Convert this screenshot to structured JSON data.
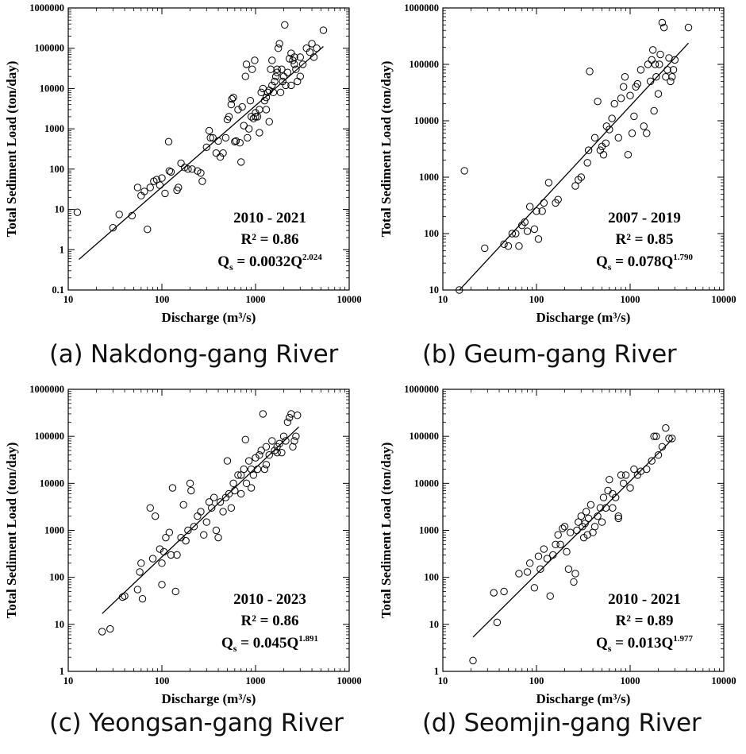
{
  "chart_data": [
    {
      "type": "scatter",
      "caption": "(a) Nakdong-gang River",
      "xlabel": "Discharge (m³/s)",
      "ylabel": "Total Sediment Load (ton/day)",
      "xscale": "log",
      "yscale": "log",
      "xlim": [
        10,
        10000
      ],
      "ylim": [
        0.1,
        1000000
      ],
      "xticks": [
        "10",
        "100",
        "1000",
        "10000"
      ],
      "yticks": [
        "0.1",
        "1",
        "10",
        "100",
        "1000",
        "10000",
        "100000",
        "1000000"
      ],
      "period": "2010 - 2021",
      "r2": "R² = 0.86",
      "equation": {
        "lhs": "Q",
        "lhs_sub": "s",
        "coef": " = 0.0032Q",
        "exp": "2.024"
      },
      "fit": {
        "a": 0.0032,
        "b": 2.024,
        "x_range": [
          13,
          5300
        ]
      },
      "points": [
        [
          12.5,
          8.5
        ],
        [
          30,
          3.5
        ],
        [
          35,
          7.5
        ],
        [
          48,
          7
        ],
        [
          55,
          35
        ],
        [
          60,
          22
        ],
        [
          65,
          28
        ],
        [
          70,
          3.2
        ],
        [
          75,
          35
        ],
        [
          82,
          50
        ],
        [
          88,
          55
        ],
        [
          95,
          40
        ],
        [
          100,
          60
        ],
        [
          108,
          25
        ],
        [
          118,
          480
        ],
        [
          120,
          90
        ],
        [
          125,
          85
        ],
        [
          145,
          30
        ],
        [
          150,
          35
        ],
        [
          160,
          140
        ],
        [
          175,
          110
        ],
        [
          190,
          100
        ],
        [
          210,
          100
        ],
        [
          240,
          90
        ],
        [
          260,
          80
        ],
        [
          270,
          50
        ],
        [
          300,
          350
        ],
        [
          320,
          900
        ],
        [
          330,
          600
        ],
        [
          350,
          600
        ],
        [
          380,
          250
        ],
        [
          400,
          500
        ],
        [
          420,
          200
        ],
        [
          450,
          250
        ],
        [
          480,
          600
        ],
        [
          500,
          1700
        ],
        [
          520,
          2000
        ],
        [
          550,
          4000
        ],
        [
          560,
          5500
        ],
        [
          580,
          6000
        ],
        [
          600,
          480
        ],
        [
          620,
          500
        ],
        [
          650,
          3000
        ],
        [
          680,
          450
        ],
        [
          700,
          150
        ],
        [
          720,
          3500
        ],
        [
          750,
          1200
        ],
        [
          780,
          20000
        ],
        [
          800,
          40000
        ],
        [
          820,
          600
        ],
        [
          850,
          1000
        ],
        [
          880,
          5000
        ],
        [
          900,
          2000
        ],
        [
          920,
          30000
        ],
        [
          950,
          1800
        ],
        [
          980,
          50000
        ],
        [
          1000,
          2500
        ],
        [
          1050,
          2000
        ],
        [
          1100,
          3000
        ],
        [
          1150,
          8000
        ],
        [
          1200,
          10000
        ],
        [
          1250,
          5000
        ],
        [
          1300,
          6000
        ],
        [
          1350,
          8000
        ],
        [
          1400,
          1500
        ],
        [
          1450,
          30000
        ],
        [
          1500,
          50000
        ],
        [
          1550,
          8000
        ],
        [
          1600,
          15000
        ],
        [
          1650,
          20000
        ],
        [
          1700,
          25000
        ],
        [
          1750,
          100000
        ],
        [
          1800,
          130000
        ],
        [
          1850,
          8000
        ],
        [
          1900,
          30000
        ],
        [
          1950,
          15000
        ],
        [
          2000,
          20000
        ],
        [
          2050,
          380000
        ],
        [
          2100,
          12000
        ],
        [
          2200,
          25000
        ],
        [
          2300,
          55000
        ],
        [
          2400,
          75000
        ],
        [
          2500,
          50000
        ],
        [
          2600,
          60000
        ],
        [
          2700,
          30000
        ],
        [
          2800,
          15000
        ],
        [
          3000,
          20000
        ],
        [
          3200,
          40000
        ],
        [
          3500,
          100000
        ],
        [
          3800,
          80000
        ],
        [
          4000,
          130000
        ],
        [
          4200,
          60000
        ],
        [
          4500,
          100000
        ],
        [
          5300,
          280000
        ],
        [
          1400,
          9000
        ],
        [
          1300,
          3000
        ],
        [
          1100,
          800
        ],
        [
          1000,
          2000
        ],
        [
          1500,
          12000
        ],
        [
          2600,
          40000
        ],
        [
          2400,
          12000
        ],
        [
          3000,
          60000
        ],
        [
          1700,
          30000
        ]
      ]
    },
    {
      "type": "scatter",
      "caption": "(b) Geum-gang River",
      "xlabel": "Discharge (m³/s)",
      "ylabel": "Total Sediment Load (ton/day)",
      "xscale": "log",
      "yscale": "log",
      "xlim": [
        10,
        10000
      ],
      "ylim": [
        10,
        1000000
      ],
      "xticks": [
        "10",
        "100",
        "1000",
        "10000"
      ],
      "yticks": [
        "10",
        "100",
        "1000",
        "10000",
        "100000",
        "1000000"
      ],
      "period": "2007 - 2019",
      "r2": "R² = 0.85",
      "equation": {
        "lhs": "Q",
        "lhs_sub": "s",
        "coef": " = 0.078Q",
        "exp": "1.790"
      },
      "fit": {
        "a": 0.078,
        "b": 1.79,
        "x_range": [
          15,
          4200
        ]
      },
      "points": [
        [
          15,
          10
        ],
        [
          17,
          1300
        ],
        [
          28,
          55
        ],
        [
          45,
          65
        ],
        [
          50,
          60
        ],
        [
          55,
          100
        ],
        [
          60,
          100
        ],
        [
          65,
          60
        ],
        [
          70,
          140
        ],
        [
          75,
          160
        ],
        [
          80,
          110
        ],
        [
          85,
          300
        ],
        [
          95,
          120
        ],
        [
          100,
          250
        ],
        [
          105,
          80
        ],
        [
          115,
          250
        ],
        [
          120,
          350
        ],
        [
          135,
          800
        ],
        [
          160,
          350
        ],
        [
          170,
          400
        ],
        [
          260,
          700
        ],
        [
          280,
          900
        ],
        [
          300,
          1000
        ],
        [
          350,
          1800
        ],
        [
          360,
          3000
        ],
        [
          370,
          75000
        ],
        [
          420,
          5000
        ],
        [
          450,
          22000
        ],
        [
          480,
          3000
        ],
        [
          500,
          3500
        ],
        [
          520,
          2500
        ],
        [
          550,
          4000
        ],
        [
          560,
          8000
        ],
        [
          600,
          7000
        ],
        [
          640,
          11000
        ],
        [
          680,
          20000
        ],
        [
          750,
          5000
        ],
        [
          800,
          25000
        ],
        [
          850,
          40000
        ],
        [
          880,
          60000
        ],
        [
          950,
          2500
        ],
        [
          1000,
          28000
        ],
        [
          1050,
          6000
        ],
        [
          1100,
          12000
        ],
        [
          1150,
          40000
        ],
        [
          1200,
          45000
        ],
        [
          1300,
          80000
        ],
        [
          1400,
          8000
        ],
        [
          1500,
          6000
        ],
        [
          1550,
          100000
        ],
        [
          1650,
          50000
        ],
        [
          1700,
          120000
        ],
        [
          1750,
          180000
        ],
        [
          1800,
          15000
        ],
        [
          1850,
          100000
        ],
        [
          1900,
          60000
        ],
        [
          2000,
          30000
        ],
        [
          2050,
          100000
        ],
        [
          2100,
          150000
        ],
        [
          2200,
          550000
        ],
        [
          2300,
          450000
        ],
        [
          2400,
          60000
        ],
        [
          2500,
          80000
        ],
        [
          2600,
          130000
        ],
        [
          2700,
          50000
        ],
        [
          2800,
          60000
        ],
        [
          2900,
          80000
        ],
        [
          3000,
          120000
        ],
        [
          4200,
          450000
        ]
      ]
    },
    {
      "type": "scatter",
      "caption": "(c) Yeongsan-gang River",
      "xlabel": "Discharge (m³/s)",
      "ylabel": "Total Sediment Load (ton/day)",
      "xscale": "log",
      "yscale": "log",
      "xlim": [
        10,
        10000
      ],
      "ylim": [
        1,
        1000000
      ],
      "xticks": [
        "10",
        "100",
        "1000",
        "10000"
      ],
      "yticks": [
        "1",
        "10",
        "100",
        "1000",
        "10000",
        "100000",
        "1000000"
      ],
      "period": "2010 - 2023",
      "r2": "R² = 0.86",
      "equation": {
        "lhs": "Q",
        "lhs_sub": "s",
        "coef": " = 0.045Q",
        "exp": "1.891"
      },
      "fit": {
        "a": 0.045,
        "b": 1.891,
        "x_range": [
          23,
          2900
        ]
      },
      "points": [
        [
          23,
          7
        ],
        [
          28,
          8
        ],
        [
          38,
          38
        ],
        [
          40,
          40
        ],
        [
          55,
          55
        ],
        [
          58,
          130
        ],
        [
          60,
          200
        ],
        [
          62,
          35
        ],
        [
          75,
          3000
        ],
        [
          80,
          250
        ],
        [
          85,
          2000
        ],
        [
          95,
          400
        ],
        [
          100,
          200
        ],
        [
          100,
          70
        ],
        [
          105,
          350
        ],
        [
          110,
          700
        ],
        [
          120,
          900
        ],
        [
          125,
          300
        ],
        [
          130,
          8000
        ],
        [
          140,
          50
        ],
        [
          145,
          300
        ],
        [
          160,
          700
        ],
        [
          170,
          3500
        ],
        [
          180,
          600
        ],
        [
          190,
          1000
        ],
        [
          200,
          10000
        ],
        [
          205,
          7000
        ],
        [
          220,
          1200
        ],
        [
          240,
          2000
        ],
        [
          260,
          2500
        ],
        [
          280,
          800
        ],
        [
          300,
          1500
        ],
        [
          320,
          4000
        ],
        [
          340,
          3000
        ],
        [
          360,
          5000
        ],
        [
          380,
          1000
        ],
        [
          400,
          700
        ],
        [
          420,
          4000
        ],
        [
          450,
          2500
        ],
        [
          480,
          5000
        ],
        [
          500,
          30000
        ],
        [
          520,
          6000
        ],
        [
          550,
          3000
        ],
        [
          580,
          10000
        ],
        [
          600,
          7000
        ],
        [
          650,
          15000
        ],
        [
          700,
          6000
        ],
        [
          750,
          20000
        ],
        [
          780,
          85000
        ],
        [
          800,
          10000
        ],
        [
          850,
          30000
        ],
        [
          900,
          20000
        ],
        [
          950,
          15000
        ],
        [
          1000,
          35000
        ],
        [
          1050,
          20000
        ],
        [
          1100,
          40000
        ],
        [
          1150,
          50000
        ],
        [
          1200,
          300000
        ],
        [
          1250,
          20000
        ],
        [
          1300,
          60000
        ],
        [
          1400,
          40000
        ],
        [
          1500,
          80000
        ],
        [
          1600,
          50000
        ],
        [
          1700,
          60000
        ],
        [
          1800,
          70000
        ],
        [
          1900,
          45000
        ],
        [
          2000,
          100000
        ],
        [
          2100,
          80000
        ],
        [
          2200,
          200000
        ],
        [
          2300,
          250000
        ],
        [
          2400,
          300000
        ],
        [
          2500,
          60000
        ],
        [
          2600,
          80000
        ],
        [
          2700,
          100000
        ],
        [
          2800,
          280000
        ],
        [
          700,
          15000
        ],
        [
          900,
          8000
        ],
        [
          1300,
          25000
        ],
        [
          1700,
          45000
        ]
      ]
    },
    {
      "type": "scatter",
      "caption": "(d) Seomjin-gang River",
      "xlabel": "Discharge (m³/s)",
      "ylabel": "Total Sediment Load (ton/day)",
      "xscale": "log",
      "yscale": "log",
      "xlim": [
        10,
        10000
      ],
      "ylim": [
        1,
        1000000
      ],
      "xticks": [
        "10",
        "100",
        "1000",
        "10000"
      ],
      "yticks": [
        "1",
        "10",
        "100",
        "1000",
        "10000",
        "100000",
        "1000000"
      ],
      "period": "2010 - 2021",
      "r2": "R² = 0.89",
      "equation": {
        "lhs": "Q",
        "lhs_sub": "s",
        "coef": " = 0.013Q",
        "exp": "1.977"
      },
      "fit": {
        "a": 0.013,
        "b": 1.977,
        "x_range": [
          21,
          2900
        ]
      },
      "points": [
        [
          21,
          1.7
        ],
        [
          35,
          47
        ],
        [
          38,
          11
        ],
        [
          45,
          50
        ],
        [
          65,
          120
        ],
        [
          80,
          130
        ],
        [
          85,
          200
        ],
        [
          95,
          60
        ],
        [
          105,
          280
        ],
        [
          110,
          150
        ],
        [
          120,
          400
        ],
        [
          130,
          250
        ],
        [
          140,
          40
        ],
        [
          150,
          300
        ],
        [
          160,
          500
        ],
        [
          170,
          800
        ],
        [
          180,
          500
        ],
        [
          190,
          1100
        ],
        [
          200,
          1200
        ],
        [
          210,
          350
        ],
        [
          220,
          150
        ],
        [
          230,
          900
        ],
        [
          250,
          80
        ],
        [
          260,
          120
        ],
        [
          270,
          1000
        ],
        [
          280,
          1500
        ],
        [
          300,
          2000
        ],
        [
          310,
          1200
        ],
        [
          320,
          700
        ],
        [
          330,
          1400
        ],
        [
          340,
          2500
        ],
        [
          350,
          800
        ],
        [
          360,
          1800
        ],
        [
          380,
          3500
        ],
        [
          400,
          900
        ],
        [
          420,
          1200
        ],
        [
          450,
          2000
        ],
        [
          480,
          3000
        ],
        [
          500,
          1500
        ],
        [
          520,
          5000
        ],
        [
          550,
          3000
        ],
        [
          580,
          7000
        ],
        [
          600,
          12000
        ],
        [
          650,
          3000
        ],
        [
          700,
          5000
        ],
        [
          750,
          2000
        ],
        [
          800,
          15000
        ],
        [
          850,
          10000
        ],
        [
          900,
          15000
        ],
        [
          1000,
          8000
        ],
        [
          1100,
          20000
        ],
        [
          1200,
          15000
        ],
        [
          1500,
          20000
        ],
        [
          1700,
          30000
        ],
        [
          1800,
          100000
        ],
        [
          1900,
          100000
        ],
        [
          2000,
          40000
        ],
        [
          2200,
          60000
        ],
        [
          2400,
          150000
        ],
        [
          2600,
          90000
        ],
        [
          2800,
          90000
        ],
        [
          750,
          1800
        ],
        [
          650,
          6000
        ],
        [
          1300,
          18000
        ]
      ]
    }
  ]
}
